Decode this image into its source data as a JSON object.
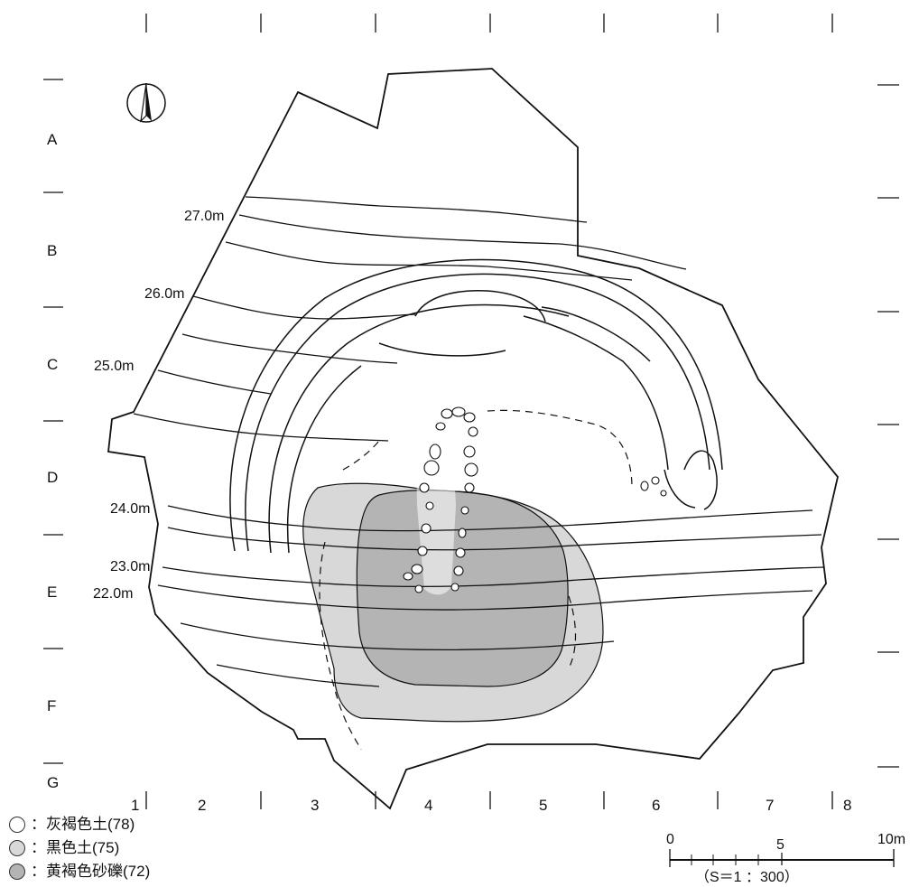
{
  "colors": {
    "black_soil": "#d8d8d8",
    "yellow_gravel": "#b4b4b4",
    "grey_brown": "#ffffff",
    "line": "#111111"
  },
  "grid": {
    "columns": [
      "1",
      "2",
      "3",
      "4",
      "5",
      "6",
      "7",
      "8"
    ],
    "rows": [
      "A",
      "B",
      "C",
      "D",
      "E",
      "F",
      "G"
    ]
  },
  "contours": [
    "27.0m",
    "26.0m",
    "25.0m",
    "24.0m",
    "23.0m",
    "22.0m"
  ],
  "legend": [
    {
      "swatch": "grey_brown",
      "text": "：灰褐色土(78)"
    },
    {
      "swatch": "black_soil",
      "text": "：黒色土(75)"
    },
    {
      "swatch": "yellow_gravel",
      "text": "：黄褐色砂礫(72)"
    }
  ],
  "scale": {
    "start": "0",
    "mid": "5",
    "end": "10m",
    "ratio": "（S＝1 ：300）"
  },
  "north_arrow": "north-arrow-icon"
}
